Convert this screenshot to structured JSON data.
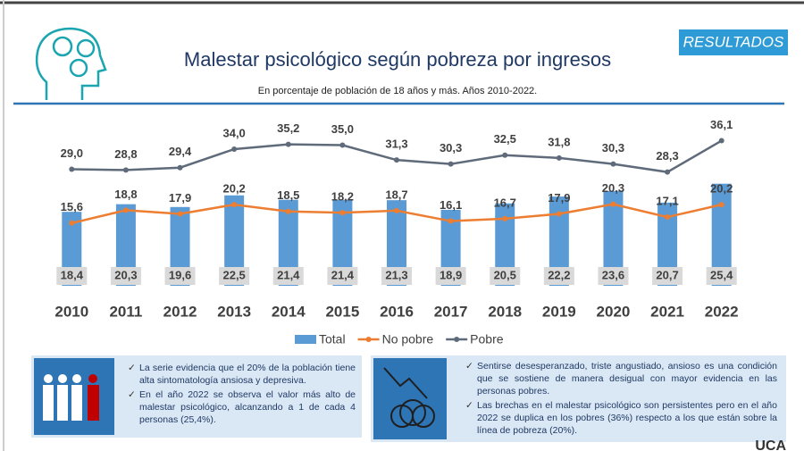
{
  "badge": "RESULTADOS",
  "chart_data": {
    "type": "combo",
    "title": "Malestar psicológico según pobreza por ingresos",
    "subtitle": "En porcentaje de población de 18 años y más. Años 2010-2022.",
    "categories": [
      "2010",
      "2011",
      "2012",
      "2013",
      "2014",
      "2015",
      "2016",
      "2017",
      "2018",
      "2019",
      "2020",
      "2021",
      "2022"
    ],
    "ylim": [
      0,
      40
    ],
    "legend": "bottom",
    "series": [
      {
        "name": "Total",
        "type": "bar",
        "color": "#5b9bd5",
        "values": [
          18.4,
          20.3,
          19.6,
          22.5,
          21.4,
          21.4,
          21.3,
          18.9,
          20.5,
          22.2,
          23.6,
          20.7,
          25.4
        ],
        "value_labels": [
          "18,4",
          "20,3",
          "19,6",
          "22,5",
          "21,4",
          "21,4",
          "21,3",
          "18,9",
          "20,5",
          "22,2",
          "23,6",
          "20,7",
          "25,4"
        ]
      },
      {
        "name": "No pobre",
        "type": "line",
        "color": "#ed7d31",
        "values": [
          15.6,
          18.8,
          17.9,
          20.2,
          18.5,
          18.2,
          18.7,
          16.1,
          16.7,
          17.9,
          20.3,
          17.1,
          20.2
        ],
        "value_labels": [
          "15,6",
          "18,8",
          "17,9",
          "20,2",
          "18,5",
          "18,2",
          "18,7",
          "16,1",
          "16,7",
          "17,9",
          "20,3",
          "17,1",
          "20,2"
        ]
      },
      {
        "name": "Pobre",
        "type": "line",
        "color": "#5f6b7a",
        "values": [
          29.0,
          28.8,
          29.4,
          34.0,
          35.2,
          35.0,
          31.3,
          30.3,
          32.5,
          31.8,
          30.3,
          28.3,
          36.1
        ],
        "value_labels": [
          "29,0",
          "28,8",
          "29,4",
          "34,0",
          "35,2",
          "35,0",
          "31,3",
          "30,3",
          "32,5",
          "31,8",
          "30,3",
          "28,3",
          "36,1"
        ]
      }
    ]
  },
  "notes": {
    "left": [
      "La serie evidencia que el 20% de la población tiene alta sintomatología ansiosa y depresiva.",
      "En el año 2022 se observa el valor más alto de malestar psicológico, alcanzando a 1 de cada 4 personas (25,4%)."
    ],
    "right": [
      "Sentirse desesperanzado, triste angustiado, ansioso es una condición que se sostiene de manera desigual con mayor evidencia en las personas pobres.",
      "Las brechas en el malestar psicológico son persistentes pero en el año 2022 se duplica en los pobres (36%) respecto a los que están sobre la línea de pobreza (20%)."
    ]
  },
  "logo_text": "UCA"
}
